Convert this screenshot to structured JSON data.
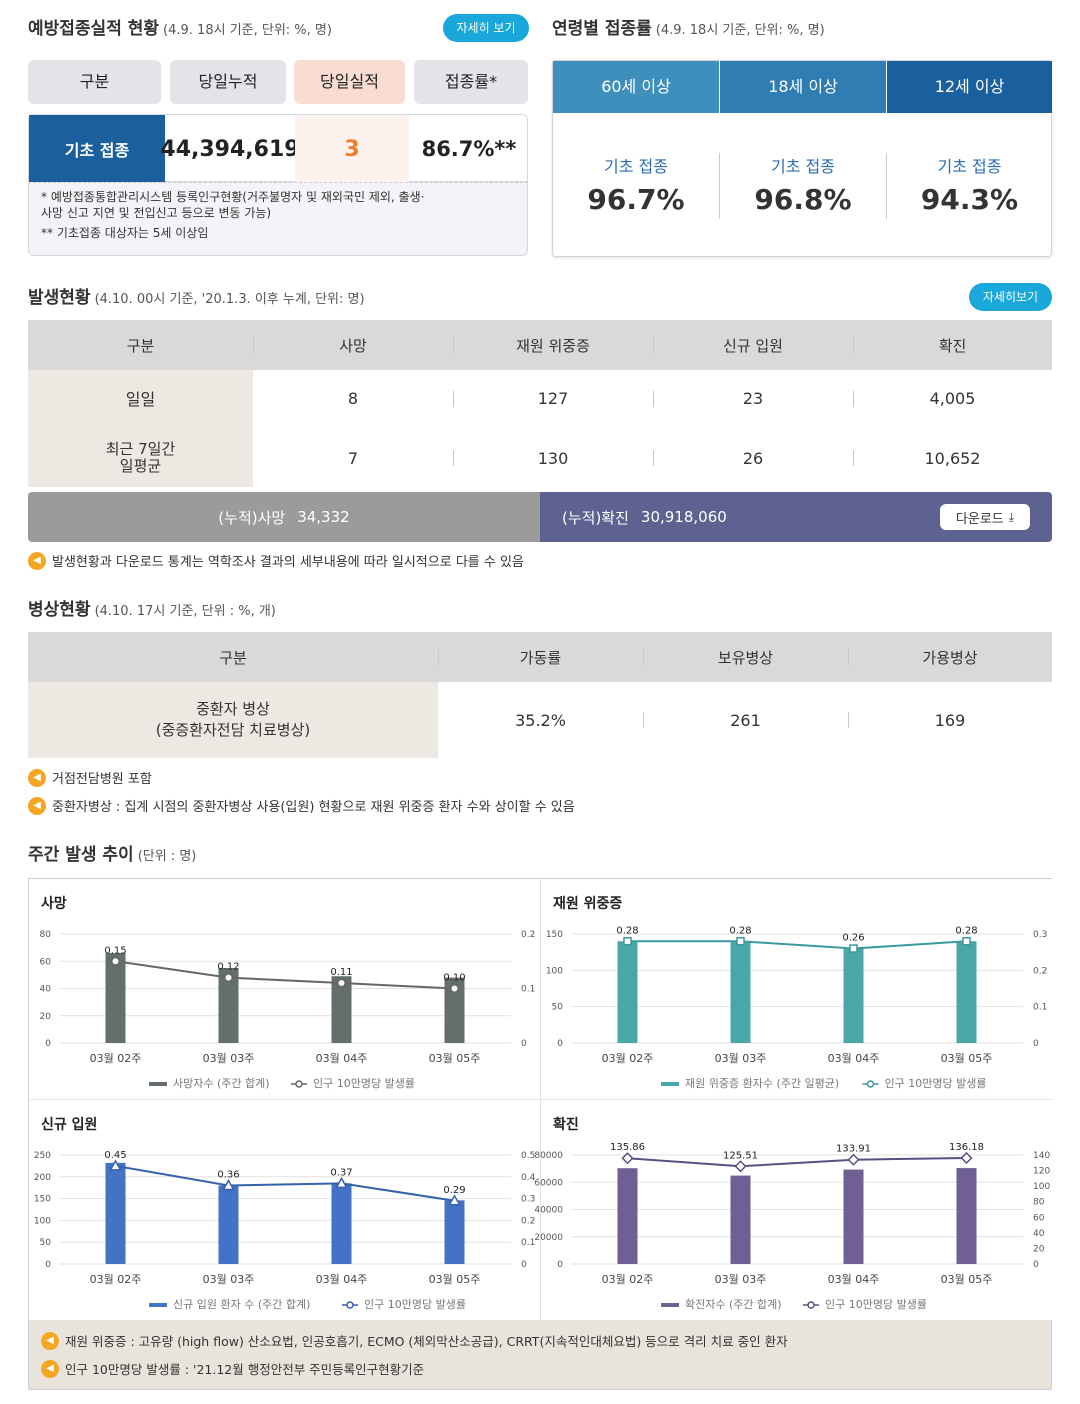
{
  "vaccination": {
    "title": "예방접종실적 현황",
    "subtitle": "(4.9. 18시 기준, 단위: %, 명)",
    "detail_button": "자세히 보기",
    "headers": [
      "구분",
      "당일누적",
      "당일실적",
      "접종률*"
    ],
    "row_label": "기초 접종",
    "cumulative": "44,394,619",
    "daily": "3",
    "rate": "86.7%**",
    "note1": "* 예방접종통합관리시스템 등록인구현황(거주불명자 및 재외국민 제외, 출생·",
    "note2": "사망 신고 지연 및 전입신고 등으로 변동 가능)",
    "note3": "** 기초접종 대상자는 5세 이상임"
  },
  "age_rate": {
    "title": "연령별 접종률",
    "subtitle": "(4.9. 18시 기준, 단위: %, 명)",
    "tabs": [
      "60세 이상",
      "18세 이상",
      "12세 이상"
    ],
    "tab_colors": [
      "#3f8fbc",
      "#2f7db3",
      "#1a5f9e"
    ],
    "label": "기초 접종",
    "values": [
      "96.7%",
      "96.8%",
      "94.3%"
    ]
  },
  "occurrence": {
    "title": "발생현황",
    "subtitle": "(4.10. 00시 기준, '20.1.3. 이후 누계, 단위: 명)",
    "detail_button": "자세히보기",
    "headers": [
      "구분",
      "사망",
      "재원 위중증",
      "신규 입원",
      "확진"
    ],
    "rows": [
      {
        "label": "일일",
        "values": [
          "8",
          "127",
          "23",
          "4,005"
        ]
      },
      {
        "label1": "최근 7일간",
        "label2": "일평균",
        "values": [
          "7",
          "130",
          "26",
          "10,652"
        ]
      }
    ],
    "cum_death_label": "(누적)사망",
    "cum_death": "34,332",
    "cum_confirmed_label": "(누적)확진",
    "cum_confirmed": "30,918,060",
    "download": "다운로드",
    "notice": "발생현황과 다운로드 통계는 역학조사 결과의 세부내용에 따라 일시적으로 다를 수 있음"
  },
  "beds": {
    "title": "병상현황",
    "subtitle": "(4.10. 17시 기준, 단위 : %, 개)",
    "headers": [
      "구분",
      "가동률",
      "보유병상",
      "가용병상"
    ],
    "row_label1": "중환자 병상",
    "row_label2": "(중증환자전담 치료병상)",
    "values": [
      "35.2%",
      "261",
      "169"
    ],
    "notice1": "거점전담병원 포함",
    "notice2": "중환자병상 : 집계 시점의 중환자병상 사용(입원) 현황으로 재원 위중증 환자 수와 상이할 수 있음"
  },
  "weekly": {
    "title": "주간 발생 추이",
    "subtitle": "(단위 : 명)",
    "notice1": "재원 위중증 : 고유량 (high flow) 산소요법, 인공호흡기, ECMO (체외막산소공급), CRRT(지속적인대체요법) 등으로 격리 치료 중인 환자",
    "notice2": "인구 10만명당 발생률 : '21.12월 행정안전부 주민등록인구현황기준"
  },
  "chart_data": [
    {
      "type": "bar",
      "title": "사망",
      "categories": [
        "03월 02주",
        "03월 03주",
        "03월 04주",
        "03월 05주"
      ],
      "series": [
        {
          "name": "사망자수 (주간 합계)",
          "type": "bar",
          "values": [
            66,
            55,
            49,
            48
          ],
          "color": "#646e6c"
        },
        {
          "name": "인구 10만명당 발생률",
          "type": "line",
          "values": [
            0.15,
            0.12,
            0.11,
            0.1
          ],
          "labels": [
            "0.15",
            "0.12",
            "0.11",
            "0.10"
          ],
          "color": "#666666"
        }
      ],
      "ylim": [
        0,
        80
      ],
      "yticks": [
        "0",
        "20",
        "40",
        "60",
        "80"
      ],
      "y2lim": [
        0,
        0.2
      ],
      "y2ticks": [
        "0",
        "0.1",
        "0.2"
      ]
    },
    {
      "type": "bar",
      "title": "재원 위중증",
      "categories": [
        "03월 02주",
        "03월 03주",
        "03월 04주",
        "03월 05주"
      ],
      "series": [
        {
          "name": "재원 위중증 환자수 (주간 일평균)",
          "type": "bar",
          "values": [
            140,
            140,
            131,
            140
          ],
          "color": "#4aa7a8"
        },
        {
          "name": "인구 10만명당 발생률",
          "type": "line",
          "values": [
            0.28,
            0.28,
            0.26,
            0.28
          ],
          "labels": [
            "0.28",
            "0.28",
            "0.26",
            "0.28"
          ],
          "color": "#3a9a9b"
        }
      ],
      "ylim": [
        0,
        150
      ],
      "yticks": [
        "0",
        "50",
        "100",
        "150"
      ],
      "y2lim": [
        0,
        0.3
      ],
      "y2ticks": [
        "0",
        "0.1",
        "0.2",
        "0.3"
      ]
    },
    {
      "type": "bar",
      "title": "신규 입원",
      "categories": [
        "03월 02주",
        "03월 03주",
        "03월 04주",
        "03월 05주"
      ],
      "series": [
        {
          "name": "신규 입원 환자 수 (주간 합계)",
          "type": "bar",
          "values": [
            232,
            180,
            185,
            146
          ],
          "color": "#4472c4"
        },
        {
          "name": "인구 10만명당 발생률",
          "type": "line",
          "values": [
            0.45,
            0.36,
            0.37,
            0.29
          ],
          "labels": [
            "0.45",
            "0.36",
            "0.37",
            "0.29"
          ],
          "color": "#3561ad"
        }
      ],
      "ylim": [
        0,
        250
      ],
      "yticks": [
        "0",
        "50",
        "100",
        "150",
        "200",
        "250"
      ],
      "y2lim": [
        0,
        0.5
      ],
      "y2ticks": [
        "0",
        "0.1",
        "0.2",
        "0.3",
        "0.4",
        "0.5"
      ]
    },
    {
      "type": "bar",
      "title": "확진",
      "categories": [
        "03월 02주",
        "03월 03주",
        "03월 04주",
        "03월 05주"
      ],
      "series": [
        {
          "name": "확진자수 (주간 합계)",
          "type": "bar",
          "values": [
            70300,
            64900,
            69300,
            70400
          ],
          "color": "#6f5f95"
        },
        {
          "name": "인구 10만명당 발생률",
          "type": "line",
          "values": [
            135.86,
            125.51,
            133.91,
            136.18
          ],
          "labels": [
            "135.86",
            "125.51",
            "133.91",
            "136.18"
          ],
          "color": "#5b4e86"
        }
      ],
      "ylim": [
        0,
        80000
      ],
      "yticks": [
        "0",
        "20000",
        "40000",
        "60000",
        "80000"
      ],
      "y2lim": [
        0,
        140
      ],
      "y2ticks": [
        "0",
        "20",
        "40",
        "60",
        "80",
        "100",
        "120",
        "140"
      ]
    }
  ]
}
